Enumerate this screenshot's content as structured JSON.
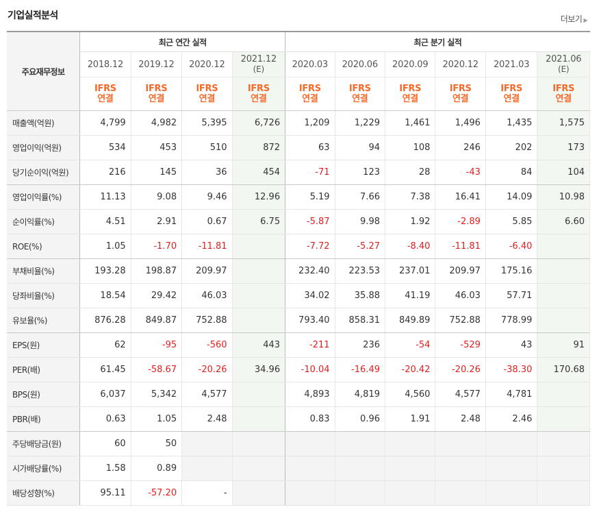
{
  "title": "기업실적분석",
  "more_label": "더보기",
  "header": {
    "row_label": "주요재무정보",
    "annual_group": "최근 연간 실적",
    "quarter_group": "최근 분기 실적",
    "annual_periods": [
      "2018.12",
      "2019.12",
      "2020.12",
      "2021.12"
    ],
    "annual_estimate": [
      false,
      false,
      false,
      true
    ],
    "quarter_periods": [
      "2020.03",
      "2020.06",
      "2020.09",
      "2020.12",
      "2021.03",
      "2021.06"
    ],
    "quarter_estimate": [
      false,
      false,
      false,
      false,
      false,
      true
    ],
    "estimate_mark": "(E)",
    "ifrs_top": "IFRS",
    "ifrs_bottom": "연결"
  },
  "rows": [
    {
      "label": "매출액(억원)",
      "values": [
        "4,799",
        "4,982",
        "5,395",
        "6,726",
        "1,209",
        "1,229",
        "1,461",
        "1,496",
        "1,435",
        "1,575"
      ]
    },
    {
      "label": "영업이익(억원)",
      "values": [
        "534",
        "453",
        "510",
        "872",
        "63",
        "94",
        "108",
        "246",
        "202",
        "173"
      ]
    },
    {
      "label": "당기순이익(억원)",
      "values": [
        "216",
        "145",
        "36",
        "454",
        "-71",
        "123",
        "28",
        "-43",
        "84",
        "104"
      ]
    },
    {
      "label": "영업이익률(%)",
      "values": [
        "11.13",
        "9.08",
        "9.46",
        "12.96",
        "5.19",
        "7.66",
        "7.38",
        "16.41",
        "14.09",
        "10.98"
      ]
    },
    {
      "label": "순이익률(%)",
      "values": [
        "4.51",
        "2.91",
        "0.67",
        "6.75",
        "-5.87",
        "9.98",
        "1.92",
        "-2.89",
        "5.85",
        "6.60"
      ]
    },
    {
      "label": "ROE(%)",
      "values": [
        "1.05",
        "-1.70",
        "-11.81",
        "",
        "-7.72",
        "-5.27",
        "-8.40",
        "-11.81",
        "-6.40",
        ""
      ]
    },
    {
      "label": "부채비율(%)",
      "values": [
        "193.28",
        "198.87",
        "209.97",
        "",
        "232.40",
        "223.53",
        "237.01",
        "209.97",
        "175.16",
        ""
      ]
    },
    {
      "label": "당좌비율(%)",
      "values": [
        "18.54",
        "29.42",
        "46.03",
        "",
        "34.02",
        "35.88",
        "41.19",
        "46.03",
        "57.71",
        ""
      ]
    },
    {
      "label": "유보율(%)",
      "values": [
        "876.28",
        "849.87",
        "752.88",
        "",
        "793.40",
        "858.31",
        "849.89",
        "752.88",
        "778.99",
        ""
      ]
    },
    {
      "label": "EPS(원)",
      "values": [
        "62",
        "-95",
        "-560",
        "443",
        "-211",
        "236",
        "-54",
        "-529",
        "43",
        "91"
      ]
    },
    {
      "label": "PER(배)",
      "values": [
        "61.45",
        "-58.67",
        "-20.26",
        "34.96",
        "-10.04",
        "-16.49",
        "-20.42",
        "-20.26",
        "-38.30",
        "170.68"
      ]
    },
    {
      "label": "BPS(원)",
      "values": [
        "6,037",
        "5,342",
        "4,577",
        "",
        "4,893",
        "4,819",
        "4,560",
        "4,577",
        "4,781",
        ""
      ]
    },
    {
      "label": "PBR(배)",
      "values": [
        "0.63",
        "1.05",
        "2.48",
        "",
        "0.83",
        "0.96",
        "1.91",
        "2.48",
        "2.46",
        ""
      ]
    },
    {
      "label": "주당배당금(원)",
      "values": [
        "60",
        "50",
        "",
        "",
        "",
        "",
        "",
        "",
        "",
        ""
      ],
      "blank_from": 2
    },
    {
      "label": "시가배당률(%)",
      "values": [
        "1.58",
        "0.89",
        "",
        "",
        "",
        "",
        "",
        "",
        "",
        ""
      ],
      "blank_from": 2
    },
    {
      "label": "배당성향(%)",
      "values": [
        "95.11",
        "-57.20",
        "-",
        "",
        "",
        "",
        "",
        "",
        "",
        ""
      ],
      "blank_from": 3
    }
  ],
  "group_ends": [
    2,
    5,
    8,
    12
  ],
  "colors": {
    "negative": "#e02020",
    "ifrs": "#f56a2a",
    "estimate_bg": "#f2f7f2"
  }
}
